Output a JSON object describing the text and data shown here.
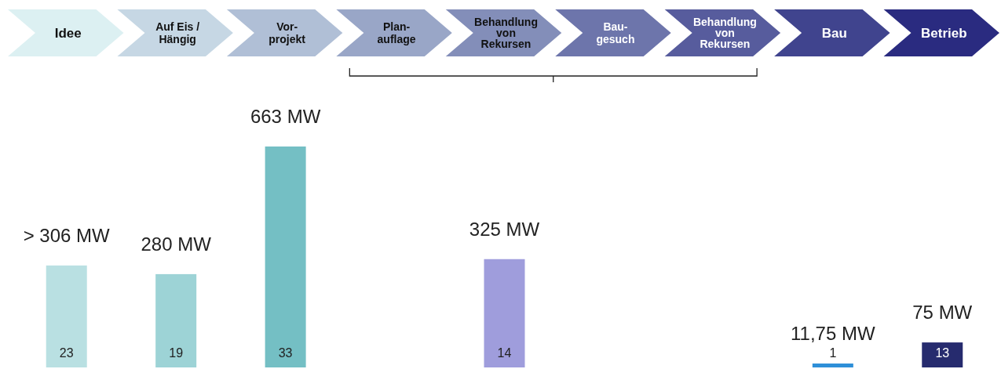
{
  "chart_data": {
    "type": "bar",
    "categories": [
      "Idee",
      "Auf Eis /\nHängig",
      "Vor-\nprojekt",
      "Plan-\nauflage",
      "Behandlung\nvon\nRekursen",
      "Bau-\ngesuch",
      "Behandlung\nvon\nRekursen",
      "Bau",
      "Betrieb"
    ],
    "values": [
      306,
      280,
      663,
      null,
      325,
      null,
      null,
      11.75,
      75
    ],
    "colors": [
      "#b9e0e2",
      "#9dd3d6",
      "#74bfc4",
      null,
      "#9f9ddc",
      null,
      null,
      "#2e8fd8",
      "#262b6e"
    ],
    "value_labels": [
      "> 306 MW",
      "280 MW",
      "663 MW",
      null,
      "325 MW",
      null,
      null,
      "11,75 MW",
      "75 MW"
    ],
    "annotations": [
      {
        "text": "23",
        "x": "Idee",
        "y": 0
      },
      {
        "text": "19",
        "x": "Auf Eis /\nHängig",
        "y": 0
      },
      {
        "text": "33",
        "x": "Vor-\nprojekt",
        "y": 0
      },
      {
        "text": "14",
        "x": "Behandlung\nvon\nRekursen",
        "y": 0
      },
      {
        "text": "1",
        "x": "Bau",
        "y": 0
      },
      {
        "text": "13",
        "x": "Betrieb",
        "y": 0
      }
    ]
  }
}
